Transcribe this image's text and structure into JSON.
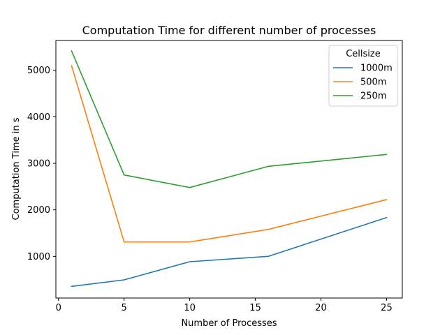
{
  "chart_data": {
    "type": "line",
    "title": "Computation Time for different number of processes",
    "xlabel": "Number of Processes",
    "ylabel": "Computation Time in s",
    "xlim": [
      -0.2,
      26.2
    ],
    "ylim": [
      105,
      5640
    ],
    "x_ticks": [
      0,
      5,
      10,
      15,
      20,
      25
    ],
    "y_ticks": [
      1000,
      2000,
      3000,
      4000,
      5000
    ],
    "grid": false,
    "legend": {
      "title": "Cellsize",
      "placement": "top-right"
    },
    "x": [
      1,
      5,
      10,
      16,
      25
    ],
    "series": [
      {
        "name": "1000m",
        "color": "#1f77b4",
        "values": [
          355,
          495,
          885,
          1000,
          1835
        ]
      },
      {
        "name": "500m",
        "color": "#ff7f0e",
        "values": [
          5095,
          1310,
          1310,
          1580,
          2220
        ]
      },
      {
        "name": "250m",
        "color": "#2ca02c",
        "values": [
          5415,
          2750,
          2480,
          2935,
          3190
        ]
      }
    ]
  }
}
